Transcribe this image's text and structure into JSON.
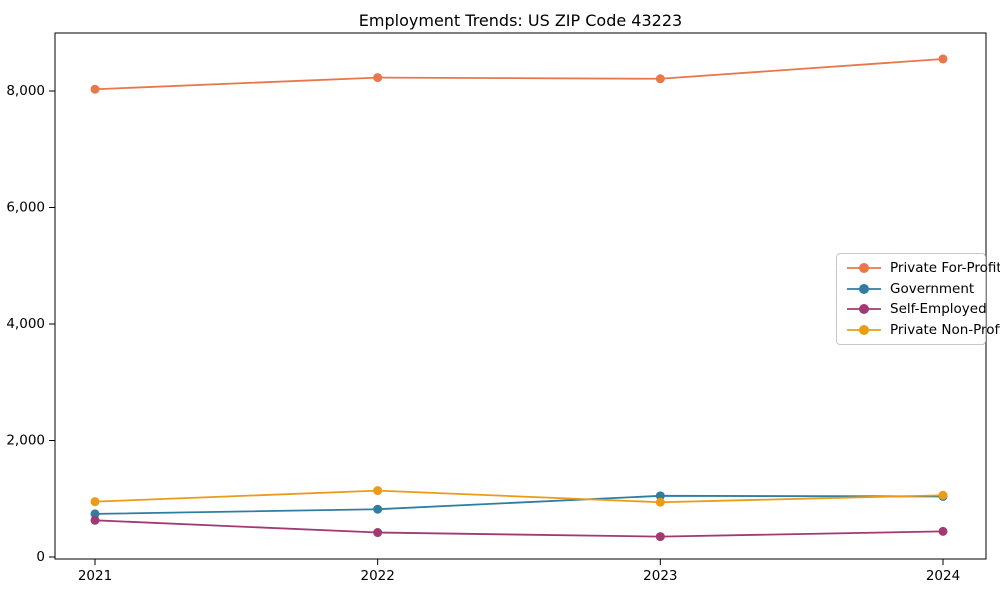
{
  "chart_data": {
    "type": "line",
    "title": "Employment Trends: US ZIP Code 43223",
    "categories": [
      "2021",
      "2022",
      "2023",
      "2024"
    ],
    "series": [
      {
        "name": "Private For-Profit",
        "color": "#E8774B",
        "values": [
          8030,
          8230,
          8210,
          8550
        ]
      },
      {
        "name": "Government",
        "color": "#2E7EA1",
        "values": [
          740,
          820,
          1050,
          1040
        ]
      },
      {
        "name": "Self-Employed",
        "color": "#A23A72",
        "values": [
          630,
          420,
          350,
          440
        ]
      },
      {
        "name": "Private Non-Profit",
        "color": "#EB9B17",
        "values": [
          950,
          1140,
          940,
          1060
        ]
      }
    ],
    "xlabel": "",
    "ylabel": "",
    "ylim": [
      0,
      9000
    ],
    "yticks": [
      0,
      2000,
      4000,
      6000,
      8000
    ],
    "ytick_labels": [
      "0",
      "2,000",
      "4,000",
      "6,000",
      "8,000"
    ],
    "grid": false,
    "legend_position": "center right",
    "axis_color": "#000000",
    "background_color": "#ffffff"
  }
}
